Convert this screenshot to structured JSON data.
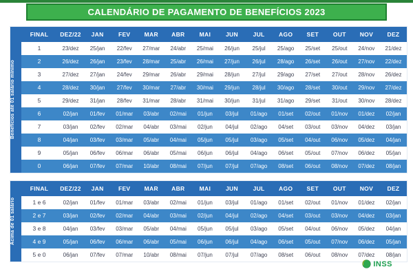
{
  "title": "CALENDÁRIO DE PAGAMENTO DE BENEFÍCIOS 2023",
  "columns": [
    "FINAL",
    "DEZ/22",
    "JAN",
    "FEV",
    "MAR",
    "ABR",
    "MAI",
    "JUN",
    "JUL",
    "AGO",
    "SET",
    "OUT",
    "NOV",
    "DEZ"
  ],
  "table1": {
    "side_label": "Benefícios até 01 salário mínimo",
    "rows": [
      {
        "final": "1",
        "dates": [
          "23/dez",
          "25/jan",
          "22/fev",
          "27/mar",
          "24/abr",
          "25/mai",
          "26/jun",
          "25/jul",
          "25/ago",
          "25/set",
          "25/out",
          "24/nov",
          "21/dez"
        ]
      },
      {
        "final": "2",
        "dates": [
          "26/dez",
          "26/jan",
          "23/fev",
          "28/mar",
          "25/abr",
          "26/mai",
          "27/jun",
          "26/jul",
          "28/ago",
          "26/set",
          "26/out",
          "27/nov",
          "22/dez"
        ]
      },
      {
        "final": "3",
        "dates": [
          "27/dez",
          "27/jan",
          "24/fev",
          "29/mar",
          "26/abr",
          "29/mai",
          "28/jun",
          "27/jul",
          "29/ago",
          "27/set",
          "27/out",
          "28/nov",
          "26/dez"
        ]
      },
      {
        "final": "4",
        "dates": [
          "28/dez",
          "30/jan",
          "27/fev",
          "30/mar",
          "27/abr",
          "30/mai",
          "29/jun",
          "28/jul",
          "30/ago",
          "28/set",
          "30/out",
          "29/nov",
          "27/dez"
        ]
      },
      {
        "final": "5",
        "dates": [
          "29/dez",
          "31/jan",
          "28/fev",
          "31/mar",
          "28/abr",
          "31/mai",
          "30/jun",
          "31/jul",
          "31/ago",
          "29/set",
          "31/out",
          "30/nov",
          "28/dez"
        ]
      },
      {
        "final": "6",
        "dates": [
          "02/jan",
          "01/fev",
          "01/mar",
          "03/abr",
          "02/mai",
          "01/jun",
          "03/jul",
          "01/ago",
          "01/set",
          "02/out",
          "01/nov",
          "01/dez",
          "02/jan"
        ]
      },
      {
        "final": "7",
        "dates": [
          "03/jan",
          "02/fev",
          "02/mar",
          "04/abr",
          "03/mai",
          "02/jun",
          "04/jul",
          "02/ago",
          "04/set",
          "03/out",
          "03/nov",
          "04/dez",
          "03/jan"
        ]
      },
      {
        "final": "8",
        "dates": [
          "04/jan",
          "03/fev",
          "03/mar",
          "05/abr",
          "04/mai",
          "05/jun",
          "05/jul",
          "03/ago",
          "05/set",
          "04/out",
          "06/nov",
          "05/dez",
          "04/jan"
        ]
      },
      {
        "final": "9",
        "dates": [
          "05/jan",
          "06/fev",
          "06/mar",
          "06/abr",
          "05/mai",
          "06/jun",
          "06/jul",
          "04/ago",
          "06/set",
          "05/out",
          "07/nov",
          "06/dez",
          "05/jan"
        ]
      },
      {
        "final": "0",
        "dates": [
          "06/jan",
          "07/fev",
          "07/mar",
          "10/abr",
          "08/mai",
          "07/jun",
          "07/jul",
          "07/ago",
          "08/set",
          "06/out",
          "08/nov",
          "07/dez",
          "08/jan"
        ]
      }
    ]
  },
  "table2": {
    "side_label": "Acima de 01 salário",
    "rows": [
      {
        "final": "1 e 6",
        "dates": [
          "02/jan",
          "01/fev",
          "01/mar",
          "03/abr",
          "02/mai",
          "01/jun",
          "03/jul",
          "01/ago",
          "01/set",
          "02/out",
          "01/nov",
          "01/dez",
          "02/jan"
        ]
      },
      {
        "final": "2 e 7",
        "dates": [
          "03/jan",
          "02/fev",
          "02/mar",
          "04/abr",
          "03/mai",
          "02/jun",
          "04/jul",
          "02/ago",
          "04/set",
          "03/out",
          "03/nov",
          "04/dez",
          "03/jan"
        ]
      },
      {
        "final": "3 e 8",
        "dates": [
          "04/jan",
          "03/fev",
          "03/mar",
          "05/abr",
          "04/mai",
          "05/jun",
          "05/jul",
          "03/ago",
          "05/set",
          "04/out",
          "06/nov",
          "05/dez",
          "04/jan"
        ]
      },
      {
        "final": "4 e 9",
        "dates": [
          "05/jan",
          "06/fev",
          "06/mar",
          "06/abr",
          "05/mai",
          "06/jun",
          "06/jul",
          "04/ago",
          "06/set",
          "05/out",
          "07/nov",
          "06/dez",
          "05/jan"
        ]
      },
      {
        "final": "5 e 0",
        "dates": [
          "06/jan",
          "07/fev",
          "07/mar",
          "10/abr",
          "08/mai",
          "07/jun",
          "07/jul",
          "07/ago",
          "08/set",
          "06/out",
          "08/nov",
          "07/dez",
          "08/jan"
        ]
      }
    ]
  },
  "footer": {
    "logo_text": "INSS"
  },
  "colors": {
    "banner_green": "#3db04d",
    "banner_border_green": "#1e8030",
    "top_strip_green": "#2a8439",
    "header_blue": "#2a6db6",
    "row_blue": "#3d87c8",
    "row_white_text": "#3f4254",
    "inss_green": "#1c9e4e",
    "inss_yellow": "#f6c915"
  }
}
